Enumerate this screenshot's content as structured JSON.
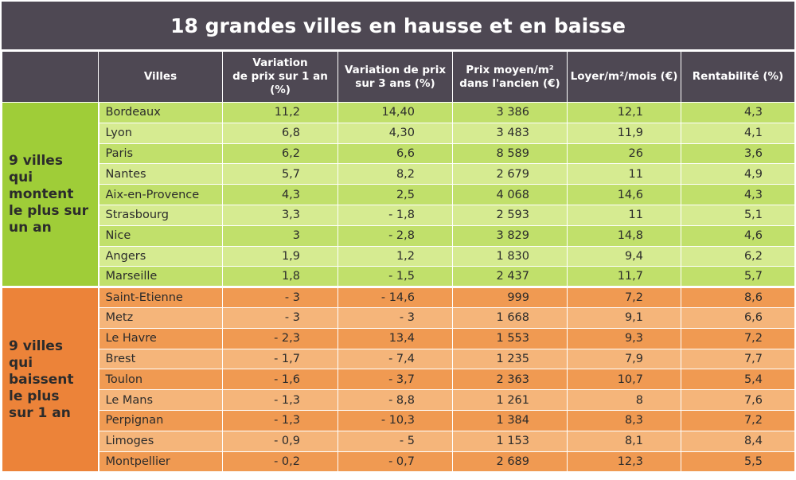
{
  "title": "18 grandes villes en hausse et en baisse",
  "headers": {
    "villes": "Villes",
    "variation_1an": [
      "Variation",
      "de prix sur 1 an (%)"
    ],
    "variation_3ans": [
      "Variation de prix",
      "sur 3 ans (%)"
    ],
    "prix_moyen": [
      "Prix moyen/m²",
      "dans l'ancien (€)"
    ],
    "loyer": "Loyer/m²/mois (€)",
    "rentabilite": "Rentabilité (%)"
  },
  "groups": [
    {
      "label": [
        "9 villes",
        "qui montent",
        "le plus sur",
        "un an"
      ],
      "color": "#9fcd38",
      "rows": [
        {
          "ville": "Bordeaux",
          "var1": "11,2",
          "var3": "14,40",
          "prix": "3 386",
          "loyer": "12,1",
          "rent": "4,3"
        },
        {
          "ville": "Lyon",
          "var1": "6,8",
          "var3": "4,30",
          "prix": "3 483",
          "loyer": "11,9",
          "rent": "4,1"
        },
        {
          "ville": "Paris",
          "var1": "6,2",
          "var3": "6,6",
          "prix": "8 589",
          "loyer": "26",
          "rent": "3,6"
        },
        {
          "ville": "Nantes",
          "var1": "5,7",
          "var3": "8,2",
          "prix": "2 679",
          "loyer": "11",
          "rent": "4,9"
        },
        {
          "ville": "Aix-en-Provence",
          "var1": "4,3",
          "var3": "2,5",
          "prix": "4 068",
          "loyer": "14,6",
          "rent": "4,3"
        },
        {
          "ville": "Strasbourg",
          "var1": "3,3",
          "var3": "- 1,8",
          "prix": "2 593",
          "loyer": "11",
          "rent": "5,1"
        },
        {
          "ville": "Nice",
          "var1": "3",
          "var3": "- 2,8",
          "prix": "3 829",
          "loyer": "14,8",
          "rent": "4,6"
        },
        {
          "ville": "Angers",
          "var1": "1,9",
          "var3": "1,2",
          "prix": "1 830",
          "loyer": "9,4",
          "rent": "6,2"
        },
        {
          "ville": "Marseille",
          "var1": "1,8",
          "var3": "- 1,5",
          "prix": "2 437",
          "loyer": "11,7",
          "rent": "5,7"
        }
      ]
    },
    {
      "label": [
        "9 villes",
        "qui baissent",
        "le plus",
        "sur 1 an"
      ],
      "color": "#ec8339",
      "rows": [
        {
          "ville": "Saint-Etienne",
          "var1": "- 3",
          "var3": "- 14,6",
          "prix": "999",
          "loyer": "7,2",
          "rent": "8,6"
        },
        {
          "ville": "Metz",
          "var1": "- 3",
          "var3": "- 3",
          "prix": "1 668",
          "loyer": "9,1",
          "rent": "6,6"
        },
        {
          "ville": "Le Havre",
          "var1": "- 2,3",
          "var3": "13,4",
          "prix": "1 553",
          "loyer": "9,3",
          "rent": "7,2"
        },
        {
          "ville": "Brest",
          "var1": "- 1,7",
          "var3": "- 7,4",
          "prix": "1 235",
          "loyer": "7,9",
          "rent": "7,7"
        },
        {
          "ville": "Toulon",
          "var1": "- 1,6",
          "var3": "- 3,7",
          "prix": "2 363",
          "loyer": "10,7",
          "rent": "5,4"
        },
        {
          "ville": "Le Mans",
          "var1": "- 1,3",
          "var3": "- 8,8",
          "prix": "1 261",
          "loyer": "8",
          "rent": "7,6"
        },
        {
          "ville": "Perpignan",
          "var1": "- 1,3",
          "var3": "- 10,3",
          "prix": "1 384",
          "loyer": "8,3",
          "rent": "7,2"
        },
        {
          "ville": "Limoges",
          "var1": "- 0,9",
          "var3": "- 5",
          "prix": "1 153",
          "loyer": "8,1",
          "rent": "8,4"
        },
        {
          "ville": "Montpellier",
          "var1": "- 0,2",
          "var3": "- 0,7",
          "prix": "2 689",
          "loyer": "12,3",
          "rent": "5,5"
        }
      ]
    }
  ]
}
